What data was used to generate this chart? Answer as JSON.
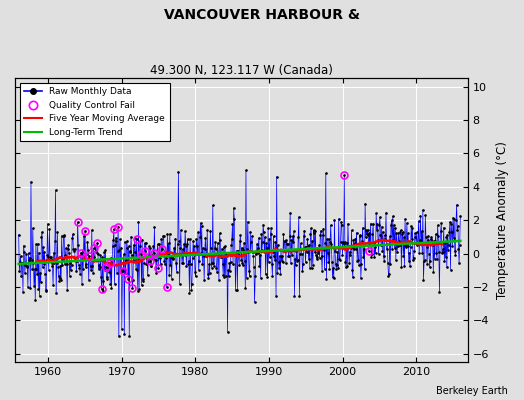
{
  "title": "VANCOUVER HARBOUR &",
  "subtitle": "49.300 N, 123.117 W (Canada)",
  "ylabel": "Temperature Anomaly (°C)",
  "credit": "Berkeley Earth",
  "ylim": [
    -6.5,
    10.5
  ],
  "xlim": [
    1955.5,
    2017
  ],
  "yticks": [
    -6,
    -4,
    -2,
    0,
    2,
    4,
    6,
    8,
    10
  ],
  "xticks": [
    1960,
    1970,
    1980,
    1990,
    2000,
    2010
  ],
  "bg_color": "#e0e0e0",
  "plot_bg": "#e0e0e0",
  "raw_color": "#0000ff",
  "qc_color": "#ff00ff",
  "ma_color": "#ff0000",
  "trend_color": "#00bb00",
  "grid_color": "#ffffff"
}
